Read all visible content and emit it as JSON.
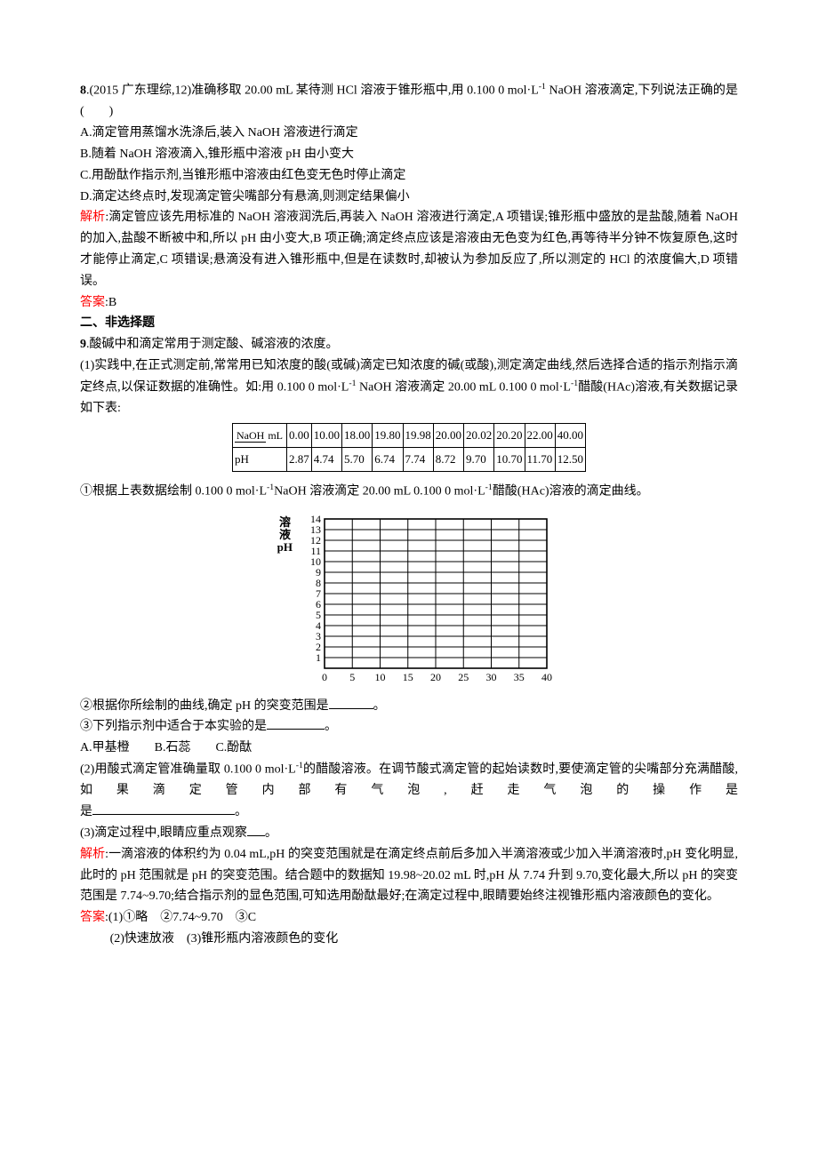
{
  "q8": {
    "num": "8",
    "stem_a": ".(2015 广东理综,12)准确移取 20.00 mL 某待测 HCl 溶液于锥形瓶中,用 0.100 0 mol·L",
    "stem_b": " NaOH 溶液滴定,下列说法正确的是(　　)",
    "optA": "A.滴定管用蒸馏水洗涤后,装入 NaOH 溶液进行滴定",
    "optB": "B.随着 NaOH 溶液滴入,锥形瓶中溶液 pH 由小变大",
    "optC": "C.用酚酞作指示剂,当锥形瓶中溶液由红色变无色时停止滴定",
    "optD": "D.滴定达终点时,发现滴定管尖嘴部分有悬滴,则测定结果偏小",
    "expl_label": "解析",
    "expl": ":滴定管应该先用标准的 NaOH 溶液润洗后,再装入 NaOH 溶液进行滴定,A 项错误;锥形瓶中盛放的是盐酸,随着 NaOH 的加入,盐酸不断被中和,所以 pH 由小变大,B 项正确;滴定终点应该是溶液由无色变为红色,再等待半分钟不恢复原色,这时才能停止滴定,C 项错误;悬滴没有进入锥形瓶中,但是在读数时,却被认为参加反应了,所以测定的 HCl 的浓度偏大,D 项错误。",
    "ans_label": "答案",
    "ans": ":B"
  },
  "section2": "二、非选择题",
  "q9": {
    "num": "9",
    "stem": ".酸碱中和滴定常用于测定酸、碱溶液的浓度。",
    "p1a": "(1)实践中,在正式测定前,常常用已知浓度的酸(或碱)滴定已知浓度的碱(或酸),测定滴定曲线,然后选择合适的指示剂指示滴定终点,以保证数据的准确性。如:用 0.100 0 mol·L",
    "p1b": " NaOH 溶液滴定 20.00 mL 0.100 0 mol·L",
    "p1c": "醋酸(HAc)溶液,有关数据记录如下表:",
    "table": {
      "row1_label_top": "NaOH",
      "row1_label_bot": "mL",
      "row1": [
        "0.00",
        "10.00",
        "18.00",
        "19.80",
        "19.98",
        "20.00",
        "20.02",
        "20.20",
        "22.00",
        "40.00"
      ],
      "row2_label": "pH",
      "row2": [
        "2.87",
        "4.74",
        "5.70",
        "6.74",
        "7.74",
        "8.72",
        "9.70",
        "10.70",
        "11.70",
        "12.50"
      ]
    },
    "sub1_a": "①根据上表数据绘制 0.100 0 mol·L",
    "sub1_b": "NaOH 溶液滴定 20.00 mL 0.100 0 mol·L",
    "sub1_c": "醋酸(HAc)溶液的滴定曲线。",
    "chart": {
      "y_label_a": "溶",
      "y_label_b": "液",
      "y_label_c": "pH",
      "y_ticks": [
        "1",
        "2",
        "3",
        "4",
        "5",
        "6",
        "7",
        "8",
        "9",
        "10",
        "11",
        "12",
        "13",
        "14"
      ],
      "x_ticks": [
        "0",
        "5",
        "10",
        "15",
        "20",
        "25",
        "30",
        "35",
        "40"
      ],
      "grid_color": "#000000",
      "bg": "#ffffff",
      "xlim": [
        0,
        40
      ],
      "ylim": [
        0,
        14
      ],
      "x_step": 5,
      "y_step": 1
    },
    "sub2": "②根据你所绘制的曲线,确定 pH 的突变范围是",
    "sub2_tail": "。",
    "sub3": "③下列指示剂中适合于本实验的是",
    "sub3_tail": "。",
    "opt3A": "A.甲基橙",
    "opt3B": "B.石蕊",
    "opt3C": "C.酚酞",
    "p2a": "(2)用酸式滴定管准确量取 0.100 0 mol·L",
    "p2b": "的醋酸溶液。在调节酸式滴定管的起始读数时,要使滴定管的尖嘴部分充满醋酸,如果滴定管内部有气泡,赶走气泡的操作是",
    "p2_tail": "。",
    "p3": "(3)滴定过程中,眼睛应重点观察",
    "p3_tail": "。",
    "expl_label": "解析",
    "expl": ":一滴溶液的体积约为 0.04 mL,pH 的突变范围就是在滴定终点前后多加入半滴溶液或少加入半滴溶液时,pH 变化明显,此时的 pH 范围就是 pH 的突变范围。结合题中的数据知 19.98~20.02 mL 时,pH 从 7.74 升到 9.70,变化最大,所以 pH 的突变范围是 7.74~9.70;结合指示剂的显色范围,可知选用酚酞最好;在滴定过程中,眼睛要始终注视锥形瓶内溶液颜色的变化。",
    "ans_label": "答案",
    "ans1": ":(1)①略　②7.74~9.70　③C",
    "ans2": "(2)快速放液　(3)锥形瓶内溶液颜色的变化"
  }
}
